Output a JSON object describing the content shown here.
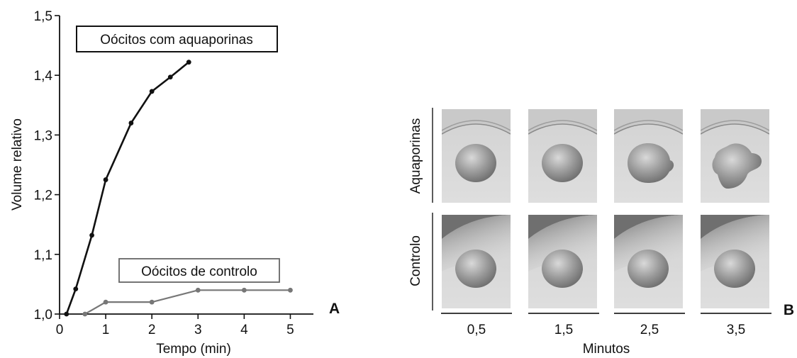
{
  "chart_data": {
    "type": "line",
    "xlabel": "Tempo (min)",
    "ylabel": "Volume relativo",
    "xlim": [
      0,
      5.5
    ],
    "ylim": [
      1.0,
      1.5
    ],
    "xticks": [
      0,
      1,
      2,
      3,
      4,
      5
    ],
    "yticks": [
      1.0,
      1.1,
      1.2,
      1.3,
      1.4,
      1.5
    ],
    "xtick_labels": [
      "0",
      "1",
      "2",
      "3",
      "4",
      "5"
    ],
    "ytick_labels": [
      "1,0",
      "1,1",
      "1,2",
      "1,3",
      "1,4",
      "1,5"
    ],
    "series": [
      {
        "name": "Oócitos com aquaporinas",
        "color": "#111111",
        "x": [
          0.15,
          0.35,
          0.7,
          1.0,
          1.55,
          2.0,
          2.4,
          2.8
        ],
        "y": [
          1.0,
          1.042,
          1.132,
          1.225,
          1.32,
          1.373,
          1.397,
          1.422
        ]
      },
      {
        "name": "Oócitos de controlo",
        "color": "#777777",
        "x": [
          0.55,
          1.0,
          2.0,
          3.0,
          4.0,
          5.0
        ],
        "y": [
          1.0,
          1.02,
          1.02,
          1.04,
          1.04,
          1.04
        ]
      }
    ]
  },
  "panel_a": {
    "letter": "A",
    "label_aquaporinas": "Oócitos com aquaporinas",
    "label_controlo": "Oócitos de controlo"
  },
  "panel_b": {
    "letter": "B",
    "row_labels": [
      "Aquaporinas",
      "Controlo"
    ],
    "times": [
      "0,5",
      "1,5",
      "2,5",
      "3,5"
    ],
    "xlabel": "Minutos",
    "aquaporin_cells": [
      "round",
      "round",
      "bulging",
      "burst"
    ],
    "control_cells": [
      "round",
      "round",
      "round",
      "round"
    ]
  }
}
